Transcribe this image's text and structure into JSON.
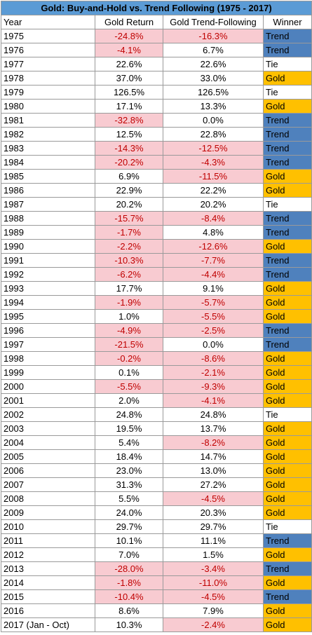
{
  "title": "Gold: Buy-and-Hold vs. Trend Following (1975 - 2017)",
  "headers": {
    "year": "Year",
    "gold_return": "Gold Return",
    "trend_following": "Gold Trend-Following",
    "winner": "Winner"
  },
  "colors": {
    "header_blue": "#5b9bd5",
    "trend_blue": "#4f81bd",
    "gold_yellow": "#ffc000",
    "negative_fill": "#f8cbd1",
    "negative_text": "#c00000"
  },
  "rows": [
    {
      "year": "1975",
      "gold_return": "-24.8%",
      "trend": "-16.3%",
      "winner": "Trend"
    },
    {
      "year": "1976",
      "gold_return": "-4.1%",
      "trend": "6.7%",
      "winner": "Trend"
    },
    {
      "year": "1977",
      "gold_return": "22.6%",
      "trend": "22.6%",
      "winner": "Tie"
    },
    {
      "year": "1978",
      "gold_return": "37.0%",
      "trend": "33.0%",
      "winner": "Gold"
    },
    {
      "year": "1979",
      "gold_return": "126.5%",
      "trend": "126.5%",
      "winner": "Tie"
    },
    {
      "year": "1980",
      "gold_return": "17.1%",
      "trend": "13.3%",
      "winner": "Gold"
    },
    {
      "year": "1981",
      "gold_return": "-32.8%",
      "trend": "0.0%",
      "winner": "Trend"
    },
    {
      "year": "1982",
      "gold_return": "12.5%",
      "trend": "22.8%",
      "winner": "Trend"
    },
    {
      "year": "1983",
      "gold_return": "-14.3%",
      "trend": "-12.5%",
      "winner": "Trend"
    },
    {
      "year": "1984",
      "gold_return": "-20.2%",
      "trend": "-4.3%",
      "winner": "Trend"
    },
    {
      "year": "1985",
      "gold_return": "6.9%",
      "trend": "-11.5%",
      "winner": "Gold"
    },
    {
      "year": "1986",
      "gold_return": "22.9%",
      "trend": "22.2%",
      "winner": "Gold"
    },
    {
      "year": "1987",
      "gold_return": "20.2%",
      "trend": "20.2%",
      "winner": "Tie"
    },
    {
      "year": "1988",
      "gold_return": "-15.7%",
      "trend": "-8.4%",
      "winner": "Trend"
    },
    {
      "year": "1989",
      "gold_return": "-1.7%",
      "trend": "4.8%",
      "winner": "Trend"
    },
    {
      "year": "1990",
      "gold_return": "-2.2%",
      "trend": "-12.6%",
      "winner": "Gold"
    },
    {
      "year": "1991",
      "gold_return": "-10.3%",
      "trend": "-7.7%",
      "winner": "Trend"
    },
    {
      "year": "1992",
      "gold_return": "-6.2%",
      "trend": "-4.4%",
      "winner": "Trend"
    },
    {
      "year": "1993",
      "gold_return": "17.7%",
      "trend": "9.1%",
      "winner": "Gold"
    },
    {
      "year": "1994",
      "gold_return": "-1.9%",
      "trend": "-5.7%",
      "winner": "Gold"
    },
    {
      "year": "1995",
      "gold_return": "1.0%",
      "trend": "-5.5%",
      "winner": "Gold"
    },
    {
      "year": "1996",
      "gold_return": "-4.9%",
      "trend": "-2.5%",
      "winner": "Trend"
    },
    {
      "year": "1997",
      "gold_return": "-21.5%",
      "trend": "0.0%",
      "winner": "Trend"
    },
    {
      "year": "1998",
      "gold_return": "-0.2%",
      "trend": "-8.6%",
      "winner": "Gold"
    },
    {
      "year": "1999",
      "gold_return": "0.1%",
      "trend": "-2.1%",
      "winner": "Gold"
    },
    {
      "year": "2000",
      "gold_return": "-5.5%",
      "trend": "-9.3%",
      "winner": "Gold"
    },
    {
      "year": "2001",
      "gold_return": "2.0%",
      "trend": "-4.1%",
      "winner": "Gold"
    },
    {
      "year": "2002",
      "gold_return": "24.8%",
      "trend": "24.8%",
      "winner": "Tie"
    },
    {
      "year": "2003",
      "gold_return": "19.5%",
      "trend": "13.7%",
      "winner": "Gold"
    },
    {
      "year": "2004",
      "gold_return": "5.4%",
      "trend": "-8.2%",
      "winner": "Gold"
    },
    {
      "year": "2005",
      "gold_return": "18.4%",
      "trend": "14.7%",
      "winner": "Gold"
    },
    {
      "year": "2006",
      "gold_return": "23.0%",
      "trend": "13.0%",
      "winner": "Gold"
    },
    {
      "year": "2007",
      "gold_return": "31.3%",
      "trend": "27.2%",
      "winner": "Gold"
    },
    {
      "year": "2008",
      "gold_return": "5.5%",
      "trend": "-4.5%",
      "winner": "Gold"
    },
    {
      "year": "2009",
      "gold_return": "24.0%",
      "trend": "20.3%",
      "winner": "Gold"
    },
    {
      "year": "2010",
      "gold_return": "29.7%",
      "trend": "29.7%",
      "winner": "Tie"
    },
    {
      "year": "2011",
      "gold_return": "10.1%",
      "trend": "11.1%",
      "winner": "Trend"
    },
    {
      "year": "2012",
      "gold_return": "7.0%",
      "trend": "1.5%",
      "winner": "Gold"
    },
    {
      "year": "2013",
      "gold_return": "-28.0%",
      "trend": "-3.4%",
      "winner": "Trend"
    },
    {
      "year": "2014",
      "gold_return": "-1.8%",
      "trend": "-11.0%",
      "winner": "Gold"
    },
    {
      "year": "2015",
      "gold_return": "-10.4%",
      "trend": "-4.5%",
      "winner": "Trend"
    },
    {
      "year": "2016",
      "gold_return": "8.6%",
      "trend": "7.9%",
      "winner": "Gold"
    },
    {
      "year": "2017 (Jan - Oct)",
      "gold_return": "10.3%",
      "trend": "-2.4%",
      "winner": "Gold"
    }
  ]
}
